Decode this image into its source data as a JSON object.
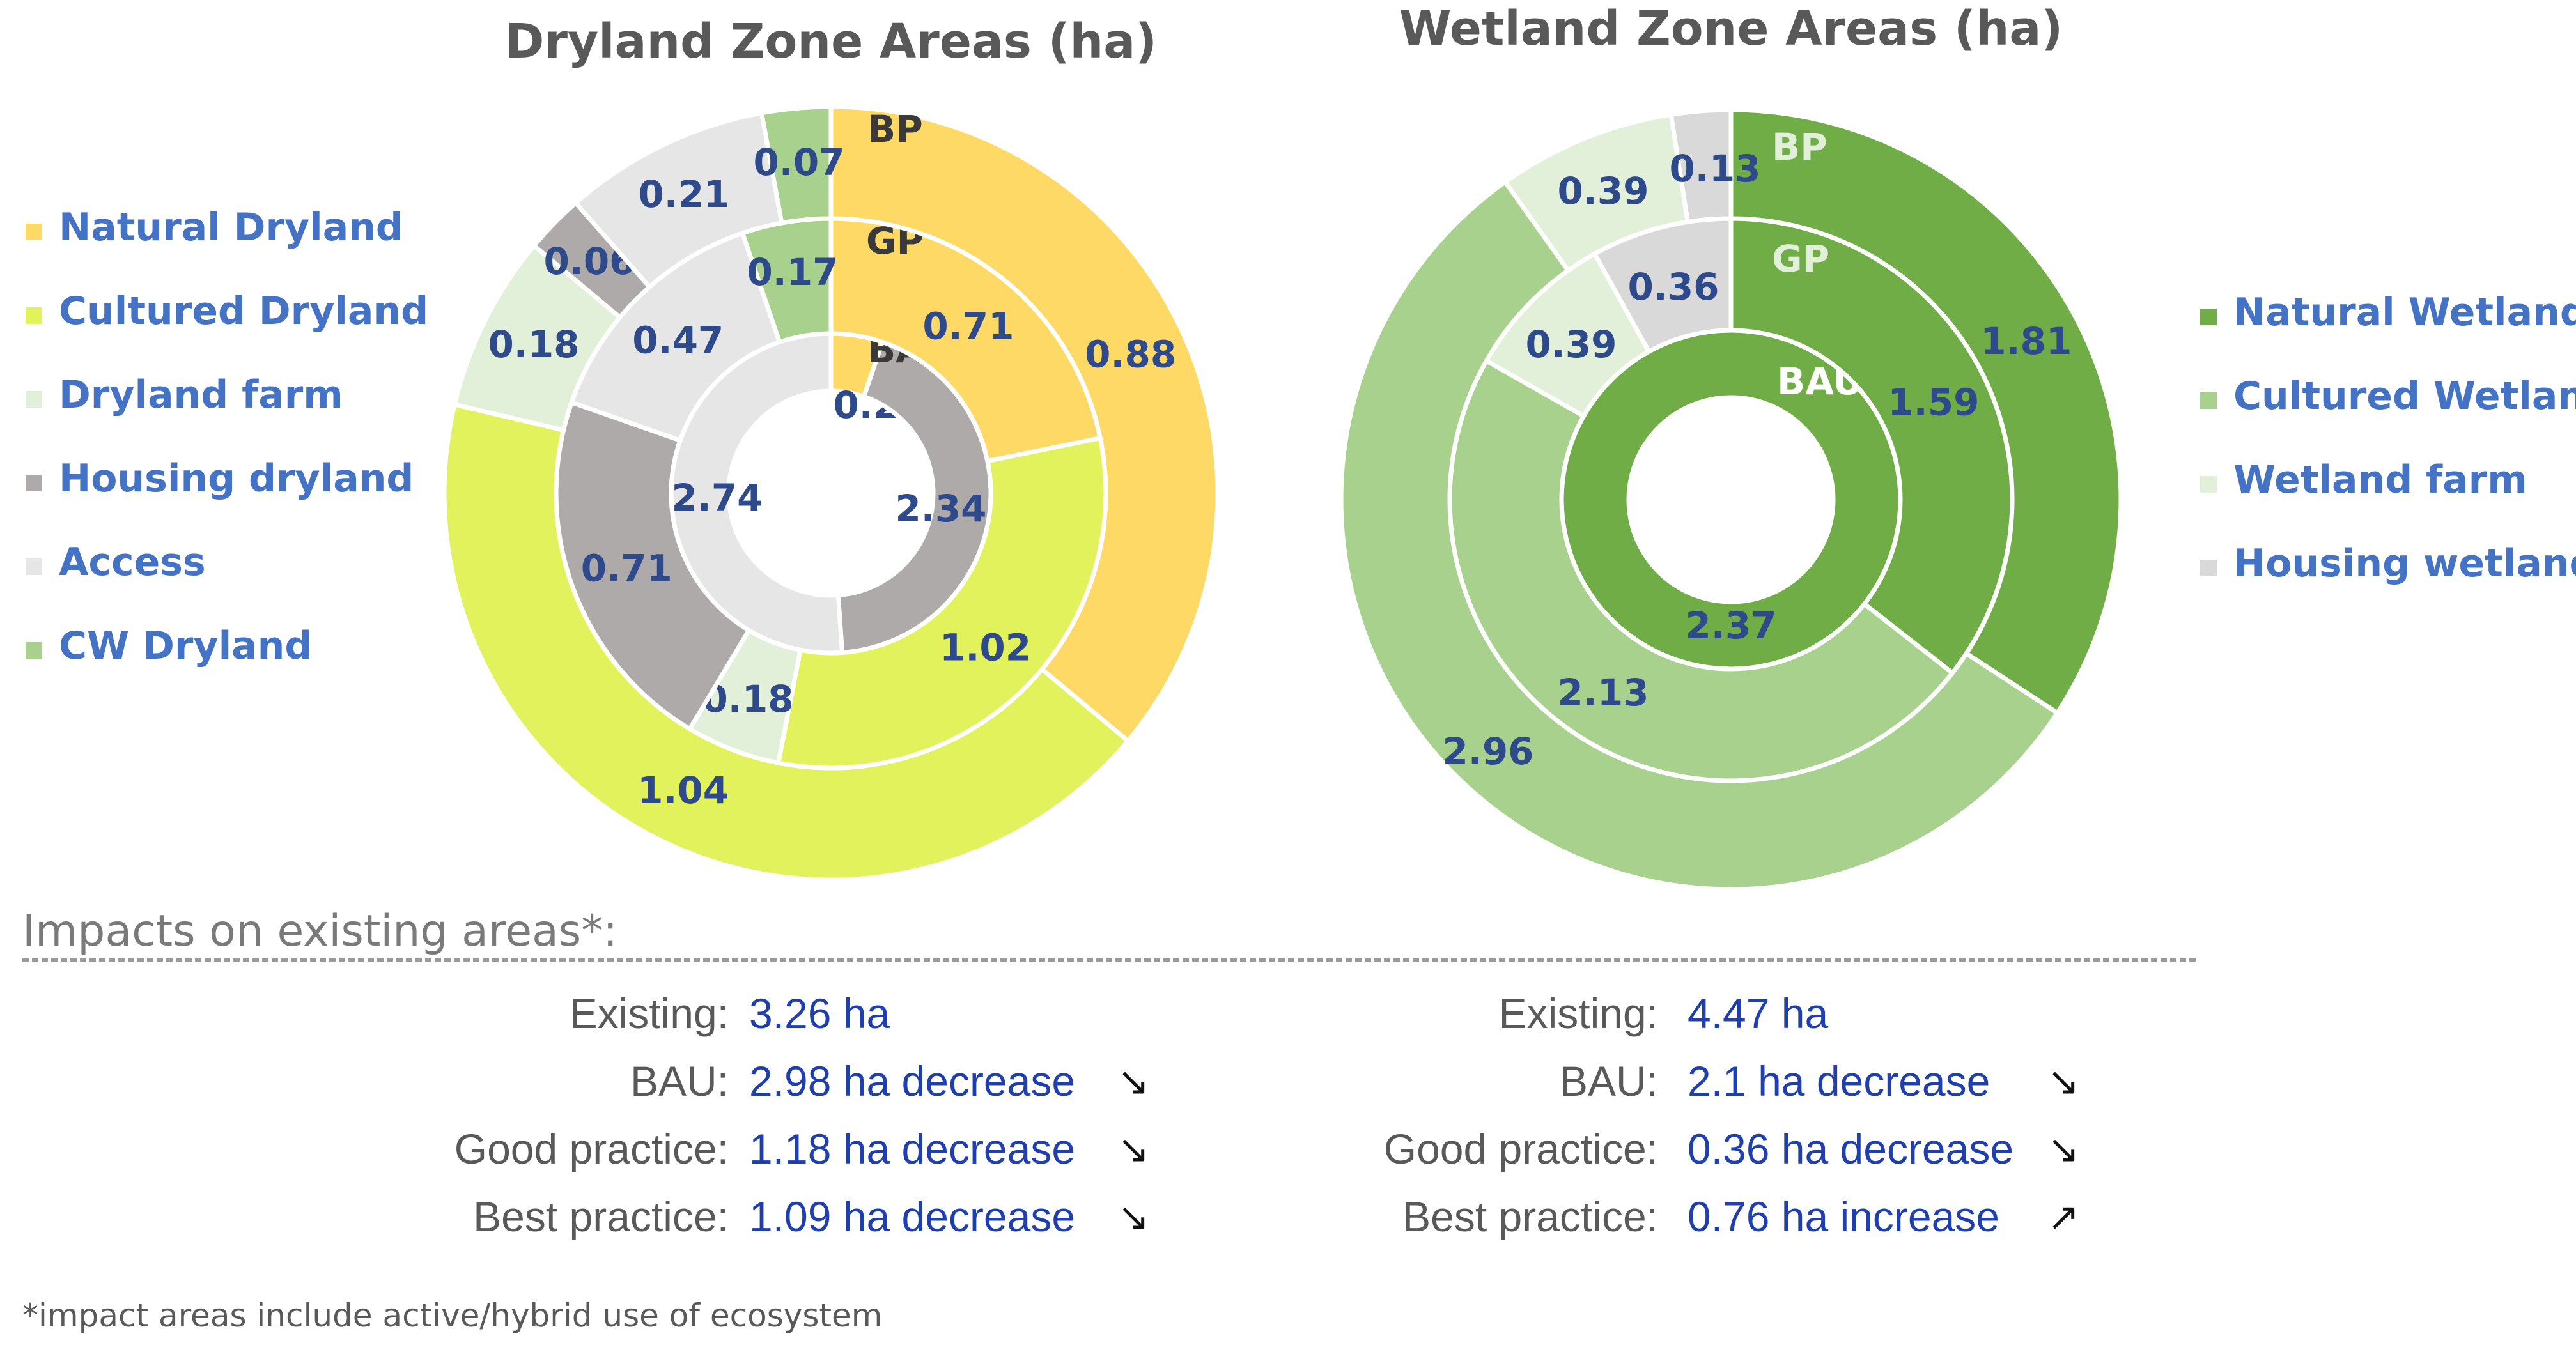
{
  "chart_data": [
    {
      "type": "donut-multiring",
      "title": "Dryland Zone Areas (ha)",
      "rings": [
        {
          "name": "BAU",
          "segments": [
            {
              "category": "Natural Dryland",
              "value": 0.28
            },
            {
              "category": "Housing dryland",
              "value": 2.34
            },
            {
              "category": "Access",
              "value": 2.74
            }
          ]
        },
        {
          "name": "GP",
          "segments": [
            {
              "category": "Natural Dryland",
              "value": 0.71
            },
            {
              "category": "Cultured Dryland",
              "value": 1.02
            },
            {
              "category": "Dryland farm",
              "value": 0.18
            },
            {
              "category": "Housing dryland",
              "value": 0.71
            },
            {
              "category": "Access",
              "value": 0.47
            },
            {
              "category": "CW Dryland",
              "value": 0.17
            }
          ]
        },
        {
          "name": "BP",
          "segments": [
            {
              "category": "Natural Dryland",
              "value": 0.88
            },
            {
              "category": "Cultured Dryland",
              "value": 1.04
            },
            {
              "category": "Dryland farm",
              "value": 0.18
            },
            {
              "category": "Housing dryland",
              "value": 0.06
            },
            {
              "category": "Access",
              "value": 0.21
            },
            {
              "category": "CW Dryland",
              "value": 0.07
            }
          ]
        }
      ],
      "legend": [
        {
          "label": "Natural Dryland",
          "color": "#FFD966"
        },
        {
          "label": "Cultured Dryland",
          "color": "#E2F25C"
        },
        {
          "label": "Dryland farm",
          "color": "#E2F0D9"
        },
        {
          "label": "Housing dryland",
          "color": "#AEAAAA"
        },
        {
          "label": "Access",
          "color": "#E7E6E6"
        },
        {
          "label": "CW Dryland",
          "color": "#A9D18E"
        }
      ],
      "legend_position": "left"
    },
    {
      "type": "donut-multiring",
      "title": "Wetland Zone Areas (ha)",
      "rings": [
        {
          "name": "BAU",
          "segments": [
            {
              "category": "Natural Wetland",
              "value": 2.37
            }
          ]
        },
        {
          "name": "GP",
          "segments": [
            {
              "category": "Natural Wetland",
              "value": 1.59
            },
            {
              "category": "Cultured Wetland",
              "value": 2.13
            },
            {
              "category": "Wetland farm",
              "value": 0.39
            },
            {
              "category": "Housing wetland",
              "value": 0.36
            }
          ]
        },
        {
          "name": "BP",
          "segments": [
            {
              "category": "Natural Wetland",
              "value": 1.81
            },
            {
              "category": "Cultured Wetland",
              "value": 2.96
            },
            {
              "category": "Wetland farm",
              "value": 0.39
            },
            {
              "category": "Housing wetland",
              "value": 0.13
            }
          ]
        }
      ],
      "legend": [
        {
          "label": "Natural Wetland",
          "color": "#70AD47"
        },
        {
          "label": "Cultured Wetland",
          "color": "#A9D18E"
        },
        {
          "label": "Wetland farm",
          "color": "#E2F0D9"
        },
        {
          "label": "Housing wetland",
          "color": "#D9D9D9"
        }
      ],
      "legend_position": "right"
    }
  ],
  "impacts": {
    "heading": "Impacts on existing areas*:",
    "dryland": [
      {
        "label": "Existing:",
        "value": "3.26 ha",
        "arrow": ""
      },
      {
        "label": "BAU:",
        "value": "2.98 ha decrease",
        "arrow": "↘"
      },
      {
        "label": "Good practice:",
        "value": "1.18 ha decrease",
        "arrow": "↘"
      },
      {
        "label": "Best practice:",
        "value": "1.09 ha decrease",
        "arrow": "↘"
      }
    ],
    "wetland": [
      {
        "label": "Existing:",
        "value": "4.47 ha",
        "arrow": ""
      },
      {
        "label": "BAU:",
        "value": "2.1 ha decrease",
        "arrow": "↘"
      },
      {
        "label": "Good practice:",
        "value": "0.36 ha decrease",
        "arrow": "↘"
      },
      {
        "label": "Best practice:",
        "value": "0.76 ha increase",
        "arrow": "↗"
      }
    ],
    "footnote": "*impact areas include active/hybrid use of ecosystem"
  }
}
